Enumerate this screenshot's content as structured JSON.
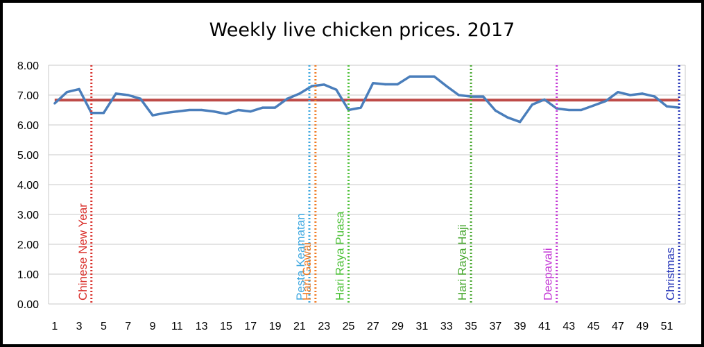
{
  "chart_data": {
    "type": "line",
    "title": "Weekly live chicken prices. 2017",
    "xlabel": "",
    "ylabel": "",
    "x": [
      1,
      2,
      3,
      4,
      5,
      6,
      7,
      8,
      9,
      10,
      11,
      12,
      13,
      14,
      15,
      16,
      17,
      18,
      19,
      20,
      21,
      22,
      23,
      24,
      25,
      26,
      27,
      28,
      29,
      30,
      31,
      32,
      33,
      34,
      35,
      36,
      37,
      38,
      39,
      40,
      41,
      42,
      43,
      44,
      45,
      46,
      47,
      48,
      49,
      50,
      51,
      52
    ],
    "xlim": [
      0.5,
      52.5
    ],
    "ylim": [
      0,
      8
    ],
    "x_tick_labels": [
      "1",
      "3",
      "5",
      "7",
      "9",
      "11",
      "13",
      "15",
      "17",
      "19",
      "21",
      "23",
      "25",
      "27",
      "29",
      "31",
      "33",
      "35",
      "37",
      "39",
      "41",
      "43",
      "45",
      "47",
      "49",
      "51"
    ],
    "y_tick_labels": [
      "8.00",
      "7.00",
      "6.00",
      "5.00",
      "4.00",
      "3.00",
      "2.00",
      "1.00",
      "0.00"
    ],
    "y_ticks": [
      8,
      7,
      6,
      5,
      4,
      3,
      2,
      1,
      0
    ],
    "grid": true,
    "series": [
      {
        "name": "",
        "color": "#4a7ebb",
        "values": [
          6.72,
          7.1,
          7.2,
          6.4,
          6.4,
          7.05,
          7.0,
          6.88,
          6.32,
          6.4,
          6.45,
          6.5,
          6.5,
          6.45,
          6.37,
          6.5,
          6.45,
          6.58,
          6.58,
          6.88,
          7.05,
          7.3,
          7.35,
          7.18,
          6.5,
          6.58,
          7.4,
          7.36,
          7.36,
          7.62,
          7.62,
          7.62,
          7.3,
          7.0,
          6.95,
          6.95,
          6.48,
          6.25,
          6.1,
          6.68,
          6.85,
          6.55,
          6.5,
          6.5,
          6.65,
          6.8,
          7.1,
          7.0,
          7.05,
          6.95,
          6.62,
          6.58
        ]
      }
    ],
    "reference_line": {
      "value": 6.83,
      "color": "#be4b48"
    },
    "events": [
      {
        "label": "Chinese New Year",
        "week": 4,
        "color": "#d9302b"
      },
      {
        "label": "Pesta Keamatan",
        "week": 21.8,
        "color": "#3fa8e0"
      },
      {
        "label": "Hari Gawai",
        "week": 22.3,
        "color": "#f07c25"
      },
      {
        "label": "Hari Raya Puasa",
        "week": 25,
        "color": "#4fc23a"
      },
      {
        "label": "Hari Raya Haji",
        "week": 35,
        "color": "#4aa832"
      },
      {
        "label": "Deepavali",
        "week": 42,
        "color": "#c43ad6"
      },
      {
        "label": "Christmas",
        "week": 52,
        "color": "#2434b8"
      }
    ]
  }
}
